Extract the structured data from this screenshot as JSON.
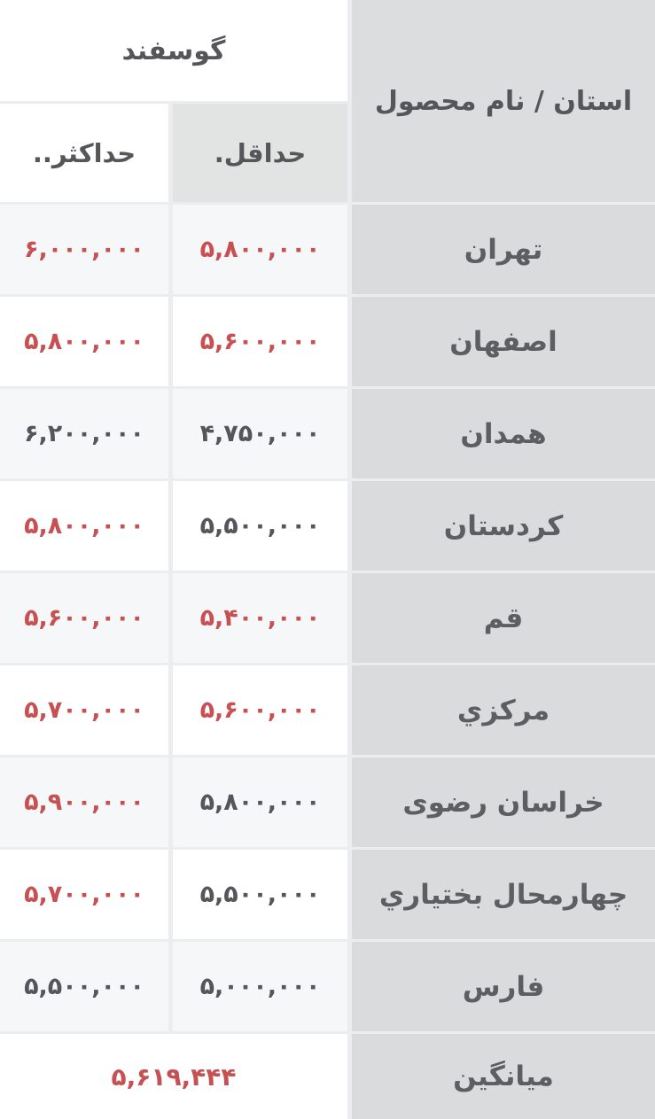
{
  "colors": {
    "price_up_red": "#c75152",
    "price_neutral_gray": "#54565c",
    "province_column_bg": "#dadbdc",
    "corner_header_bg": "#dcddde",
    "min_header_bg": "#e2e3e3",
    "tinted_row_bg": "#f5f7f9",
    "white_cell_bg": "#ffffff",
    "grid_gap": "#ebedee"
  },
  "table": {
    "corner_header": "استان / نام محصول",
    "product_header": "گوسفند",
    "min_header": "حداقل.",
    "max_header": "حداکثر..",
    "rows": [
      {
        "province": "تهران",
        "min": "۵,۸۰۰,۰۰۰",
        "min_color": "red",
        "max": "۶,۰۰۰,۰۰۰",
        "max_color": "red"
      },
      {
        "province": "اصفهان",
        "min": "۵,۶۰۰,۰۰۰",
        "min_color": "red",
        "max": "۵,۸۰۰,۰۰۰",
        "max_color": "red"
      },
      {
        "province": "همدان",
        "min": "۴,۷۵۰,۰۰۰",
        "min_color": "gray",
        "max": "۶,۲۰۰,۰۰۰",
        "max_color": "gray"
      },
      {
        "province": "کردستان",
        "min": "۵,۵۰۰,۰۰۰",
        "min_color": "gray",
        "max": "۵,۸۰۰,۰۰۰",
        "max_color": "red"
      },
      {
        "province": "قم",
        "min": "۵,۴۰۰,۰۰۰",
        "min_color": "red",
        "max": "۵,۶۰۰,۰۰۰",
        "max_color": "red"
      },
      {
        "province": "مرکزي",
        "min": "۵,۶۰۰,۰۰۰",
        "min_color": "red",
        "max": "۵,۷۰۰,۰۰۰",
        "max_color": "red"
      },
      {
        "province": "خراسان رضوی",
        "min": "۵,۸۰۰,۰۰۰",
        "min_color": "gray",
        "max": "۵,۹۰۰,۰۰۰",
        "max_color": "red"
      },
      {
        "province": "چهارمحال بختیاري",
        "min": "۵,۵۰۰,۰۰۰",
        "min_color": "gray",
        "max": "۵,۷۰۰,۰۰۰",
        "max_color": "red"
      },
      {
        "province": "فارس",
        "min": "۵,۰۰۰,۰۰۰",
        "min_color": "gray",
        "max": "۵,۵۰۰,۰۰۰",
        "max_color": "gray"
      }
    ],
    "footer": {
      "label": "میانگین",
      "value": "۵,۶۱۹,۴۴۴",
      "value_color": "red"
    }
  }
}
